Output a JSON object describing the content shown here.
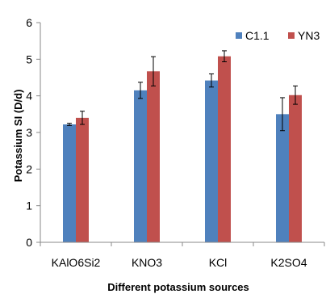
{
  "chart_data": {
    "type": "bar",
    "title": "",
    "xlabel": "Different potassium sources",
    "ylabel": "Potassium SI (D/d)",
    "ylim": [
      0,
      6
    ],
    "yticks": [
      0,
      1,
      2,
      3,
      4,
      5,
      6
    ],
    "categories": [
      "KAlO6Si2",
      "KNO3",
      "KCl",
      "K2SO4"
    ],
    "series": [
      {
        "name": "C1.1",
        "color": "#4f81bd",
        "values": [
          3.22,
          4.15,
          4.42,
          3.5
        ],
        "errors": [
          0.03,
          0.22,
          0.18,
          0.45
        ]
      },
      {
        "name": "YN3",
        "color": "#c0504d",
        "values": [
          3.4,
          4.67,
          5.08,
          4.02
        ],
        "errors": [
          0.18,
          0.4,
          0.15,
          0.25
        ]
      }
    ],
    "legend_position": "top-right",
    "grid": false
  }
}
